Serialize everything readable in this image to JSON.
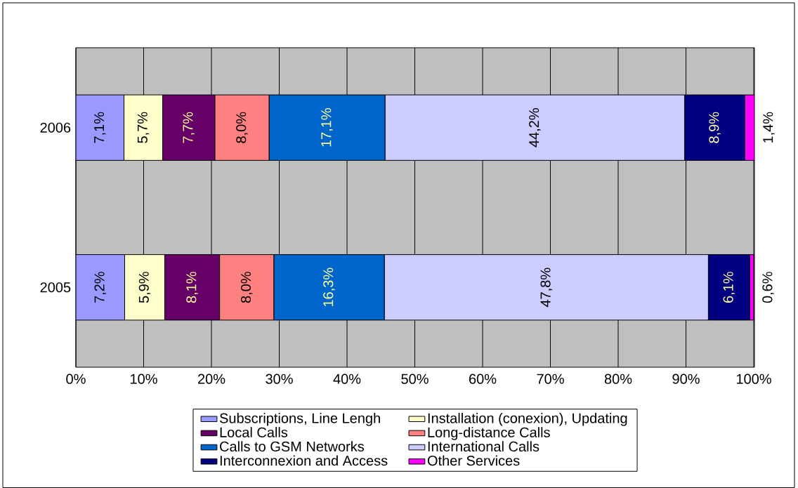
{
  "chart_data": {
    "type": "bar",
    "orientation": "horizontal",
    "stacked": true,
    "categories": [
      "2006",
      "2005"
    ],
    "xlim": [
      0,
      100.1
    ],
    "xticks": [
      {
        "value": 0,
        "label": "0%"
      },
      {
        "value": 10,
        "label": "10%"
      },
      {
        "value": 20,
        "label": "20%"
      },
      {
        "value": 30,
        "label": "30%"
      },
      {
        "value": 40,
        "label": "40%"
      },
      {
        "value": 50,
        "label": "50%"
      },
      {
        "value": 60,
        "label": "60%"
      },
      {
        "value": 70,
        "label": "70%"
      },
      {
        "value": 80,
        "label": "80%"
      },
      {
        "value": 90,
        "label": "90%"
      },
      {
        "value": 100,
        "label": "100%"
      }
    ],
    "grid": "x",
    "legend": "bottom",
    "series": [
      {
        "name": "Subscriptions, Line Lengh",
        "color": "#9999ff",
        "values": [
          7.1,
          7.2
        ],
        "value_labels": [
          "7,1%",
          "7,2%"
        ]
      },
      {
        "name": "Installation (conexion), Updating",
        "color": "#ffffcc",
        "values": [
          5.7,
          5.9
        ],
        "value_labels": [
          "5,7%",
          "5,9%"
        ]
      },
      {
        "name": "Local Calls",
        "color": "#660066",
        "values": [
          7.7,
          8.1
        ],
        "value_labels": [
          "7,7%",
          "8,1%"
        ]
      },
      {
        "name": "Long-distance Calls",
        "color": "#ff8080",
        "values": [
          8.0,
          8.0
        ],
        "value_labels": [
          "8,0%",
          "8,0%"
        ]
      },
      {
        "name": "Calls to GSM Networks",
        "color": "#0066cc",
        "values": [
          17.1,
          16.3
        ],
        "value_labels": [
          "17,1%",
          "16,3%"
        ]
      },
      {
        "name": "International Calls",
        "color": "#ccccff",
        "values": [
          44.2,
          47.8
        ],
        "value_labels": [
          "44,2%",
          "47,8%"
        ]
      },
      {
        "name": "Interconnexion and Access",
        "color": "#000080",
        "values": [
          8.9,
          6.1
        ],
        "value_labels": [
          "8,9%",
          "6,1%"
        ]
      },
      {
        "name": "Other Services",
        "color": "#ff00ff",
        "values": [
          1.4,
          0.6
        ],
        "value_labels": [
          "1,4%",
          "0,6%"
        ]
      }
    ]
  }
}
